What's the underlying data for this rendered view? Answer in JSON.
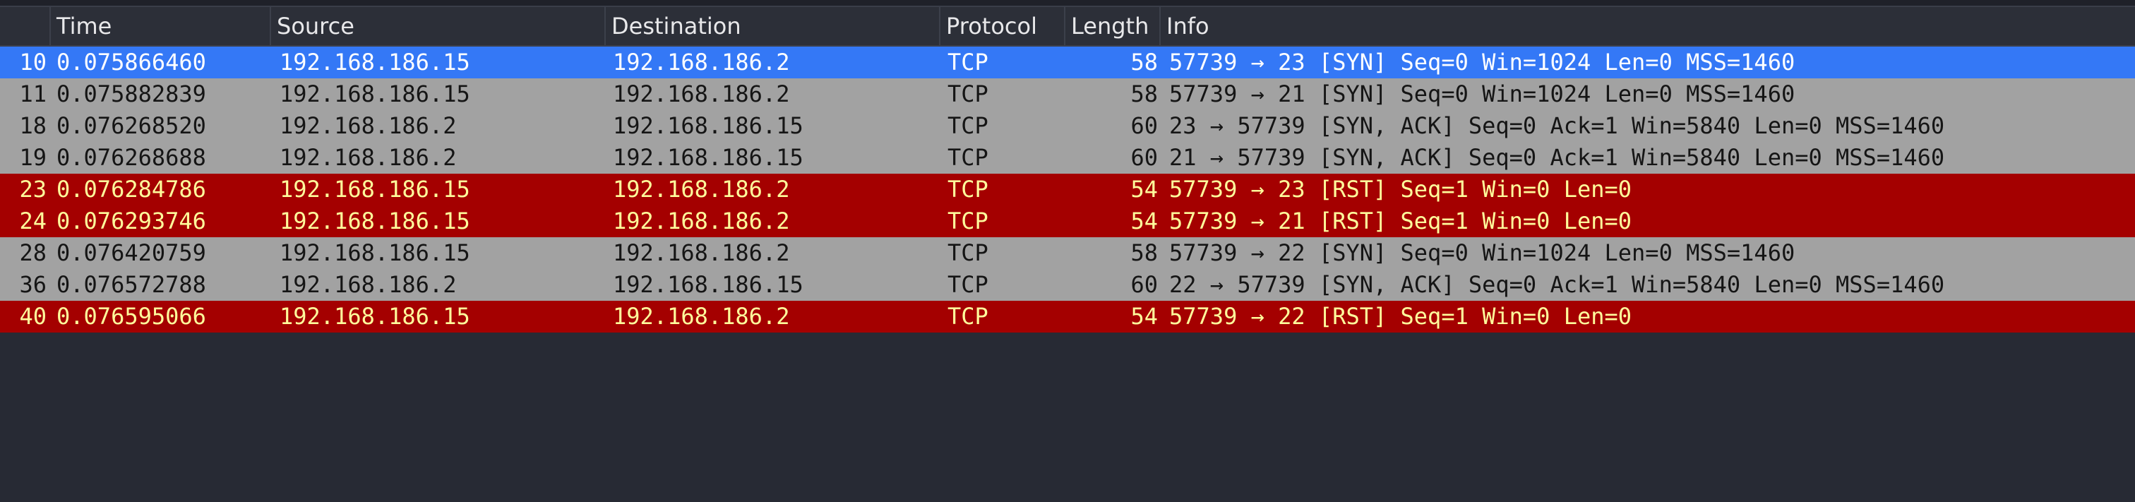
{
  "columns": {
    "no": "",
    "time": "Time",
    "source": "Source",
    "destination": "Destination",
    "protocol": "Protocol",
    "length": "Length",
    "info": "Info"
  },
  "colors": {
    "selected_row": "#3478f6",
    "normal_row": "#a2a2a2",
    "rst_row": "#a40000",
    "rst_text": "#fffc9c",
    "background": "#272a34"
  },
  "packets": [
    {
      "no": "10",
      "time": "0.075866460",
      "source": "192.168.186.15",
      "destination": "192.168.186.2",
      "protocol": "TCP",
      "length": "58",
      "info": "57739 → 23 [SYN] Seq=0 Win=1024 Len=0 MSS=1460",
      "style": "selected"
    },
    {
      "no": "11",
      "time": "0.075882839",
      "source": "192.168.186.15",
      "destination": "192.168.186.2",
      "protocol": "TCP",
      "length": "58",
      "info": "57739 → 21 [SYN] Seq=0 Win=1024 Len=0 MSS=1460",
      "style": "normal"
    },
    {
      "no": "18",
      "time": "0.076268520",
      "source": "192.168.186.2",
      "destination": "192.168.186.15",
      "protocol": "TCP",
      "length": "60",
      "info": "23 → 57739 [SYN, ACK] Seq=0 Ack=1 Win=5840 Len=0 MSS=1460",
      "style": "normal"
    },
    {
      "no": "19",
      "time": "0.076268688",
      "source": "192.168.186.2",
      "destination": "192.168.186.15",
      "protocol": "TCP",
      "length": "60",
      "info": "21 → 57739 [SYN, ACK] Seq=0 Ack=1 Win=5840 Len=0 MSS=1460",
      "style": "normal"
    },
    {
      "no": "23",
      "time": "0.076284786",
      "source": "192.168.186.15",
      "destination": "192.168.186.2",
      "protocol": "TCP",
      "length": "54",
      "info": "57739 → 23 [RST] Seq=1 Win=0 Len=0",
      "style": "rst"
    },
    {
      "no": "24",
      "time": "0.076293746",
      "source": "192.168.186.15",
      "destination": "192.168.186.2",
      "protocol": "TCP",
      "length": "54",
      "info": "57739 → 21 [RST] Seq=1 Win=0 Len=0",
      "style": "rst"
    },
    {
      "no": "28",
      "time": "0.076420759",
      "source": "192.168.186.15",
      "destination": "192.168.186.2",
      "protocol": "TCP",
      "length": "58",
      "info": "57739 → 22 [SYN] Seq=0 Win=1024 Len=0 MSS=1460",
      "style": "normal"
    },
    {
      "no": "36",
      "time": "0.076572788",
      "source": "192.168.186.2",
      "destination": "192.168.186.15",
      "protocol": "TCP",
      "length": "60",
      "info": "22 → 57739 [SYN, ACK] Seq=0 Ack=1 Win=5840 Len=0 MSS=1460",
      "style": "normal"
    },
    {
      "no": "40",
      "time": "0.076595066",
      "source": "192.168.186.15",
      "destination": "192.168.186.2",
      "protocol": "TCP",
      "length": "54",
      "info": "57739 → 22 [RST] Seq=1 Win=0 Len=0",
      "style": "rst"
    }
  ]
}
